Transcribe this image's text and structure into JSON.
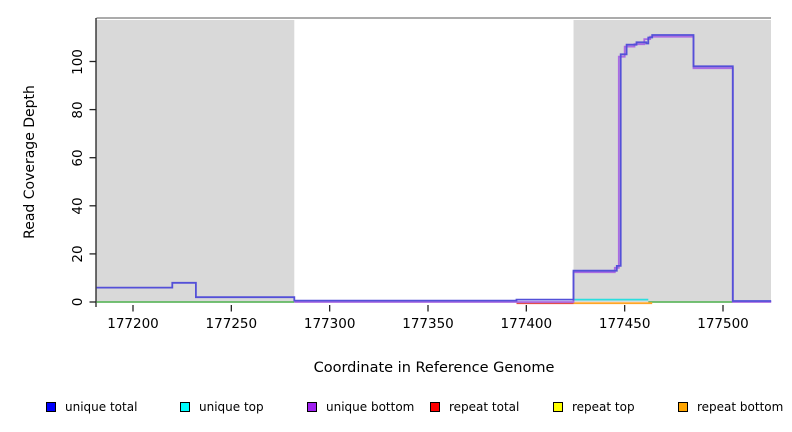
{
  "figure": {
    "x_axis_title": "Coordinate in Reference Genome",
    "y_axis_title": "Read Coverage Depth"
  },
  "chart_data": {
    "type": "line",
    "title": "",
    "xlabel": "Coordinate in Reference Genome",
    "ylabel": "Read Coverage Depth",
    "xlim": [
      177181,
      177525
    ],
    "ylim": [
      0,
      118
    ],
    "x_ticks": [
      177200,
      177250,
      177300,
      177350,
      177400,
      177450,
      177500
    ],
    "y_ticks": [
      0,
      20,
      40,
      60,
      80,
      100
    ],
    "grid": false,
    "legend_position": "bottom-horizontal",
    "background_shaded_regions": {
      "color": "#d9d9d9",
      "note": "gray shaded genomic intervals; middle interval is white",
      "intervals": [
        [
          177181,
          177282
        ],
        [
          177424,
          177525
        ]
      ]
    },
    "series": [
      {
        "name": "unique total",
        "legend_color": "#0000ff",
        "line_color": "#5450d8",
        "step": true,
        "segments": [
          [
            [
              177181.5,
              6
            ],
            [
              177220,
              6
            ],
            [
              177220,
              8
            ],
            [
              177232,
              8
            ],
            [
              177232,
              2
            ],
            [
              177282,
              2
            ],
            [
              177282,
              0.6
            ],
            [
              177395,
              0.6
            ],
            [
              177395,
              1
            ],
            [
              177424,
              1
            ],
            [
              177424,
              13
            ],
            [
              177446,
              13
            ],
            [
              177446,
              15
            ],
            [
              177448,
              15
            ],
            [
              177448,
              103
            ],
            [
              177451,
              103
            ],
            [
              177451,
              107
            ],
            [
              177456,
              107
            ],
            [
              177456,
              108
            ],
            [
              177461,
              108
            ],
            [
              177461,
              107.5
            ],
            [
              177462,
              107.5
            ],
            [
              177462,
              110
            ],
            [
              177464,
              110
            ],
            [
              177464,
              111
            ],
            [
              177485,
              111
            ],
            [
              177485,
              98
            ],
            [
              177505,
              98
            ],
            [
              177505,
              0.4
            ],
            [
              177524.5,
              0.4
            ]
          ]
        ]
      },
      {
        "name": "unique top",
        "legend_color": "#00ffff",
        "line_color": "#2adede",
        "step": true,
        "segments": [
          [
            [
              177424,
              1
            ],
            [
              177462,
              1
            ]
          ]
        ]
      },
      {
        "name": "unique bottom",
        "legend_color": "#a020f0",
        "line_color": "#ab6ce2",
        "step": true,
        "segments": [
          [
            [
              177282,
              0
            ],
            [
              177424,
              0
            ],
            [
              177424,
              12.4
            ],
            [
              177445,
              12.4
            ],
            [
              177445,
              14.2
            ],
            [
              177447,
              14.2
            ],
            [
              177447,
              102
            ],
            [
              177450,
              102
            ],
            [
              177450,
              106.2
            ],
            [
              177455,
              106.2
            ],
            [
              177455,
              107.2
            ],
            [
              177460,
              107.2
            ],
            [
              177460,
              109.3
            ],
            [
              177463,
              109.3
            ],
            [
              177463,
              110.3
            ],
            [
              177485,
              110.3
            ],
            [
              177485,
              97.2
            ],
            [
              177505,
              97.2
            ],
            [
              177505,
              0
            ],
            [
              177524.5,
              0
            ]
          ]
        ]
      },
      {
        "name": "repeat total",
        "legend_color": "#ff0000",
        "line_color": "#e34c4c",
        "step": true,
        "segments": [
          [
            [
              177395,
              0
            ],
            [
              177424,
              0
            ]
          ]
        ]
      },
      {
        "name": "repeat top",
        "legend_color": "#ffff00",
        "line_color": "#f0e030",
        "step": true,
        "segments": []
      },
      {
        "name": "repeat bottom",
        "legend_color": "#ffa500",
        "line_color": "#ffa526",
        "step": true,
        "segments": [
          [
            [
              177424,
              0
            ],
            [
              177464,
              0
            ]
          ]
        ]
      },
      {
        "name": "zero baseline (unlabeled green)",
        "legend_color": null,
        "line_color": "#62b862",
        "step": true,
        "segments": [
          [
            [
              177181.5,
              0
            ],
            [
              177282,
              0
            ]
          ],
          [
            [
              177462,
              0
            ],
            [
              177505,
              0
            ]
          ]
        ]
      }
    ]
  },
  "legend": {
    "items": [
      {
        "label": "unique total",
        "color": "#0000ff"
      },
      {
        "label": "unique top",
        "color": "#00ffff"
      },
      {
        "label": "unique bottom",
        "color": "#a020f0"
      },
      {
        "label": "repeat total",
        "color": "#ff0000"
      },
      {
        "label": "repeat top",
        "color": "#ffff00"
      },
      {
        "label": "repeat bottom",
        "color": "#ffa500"
      }
    ]
  },
  "colors": {
    "shaded_region": "#d9d9d9",
    "plot_top_border": "#8f8f8f",
    "axis": "#222222"
  }
}
